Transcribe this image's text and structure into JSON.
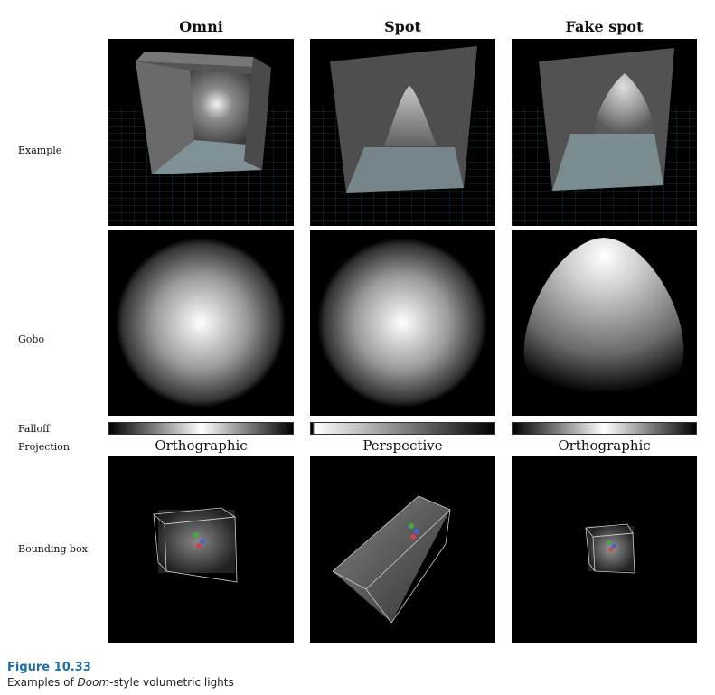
{
  "columns": [
    "Omni",
    "Spot",
    "Fake spot"
  ],
  "rows": {
    "example": "Example",
    "gobo": "Gobo",
    "falloff": "Falloff",
    "projection": "Projection",
    "bounding_box": "Bounding box"
  },
  "projections": [
    "Orthographic",
    "Perspective",
    "Orthographic"
  ],
  "figure": {
    "title": "Figure 10.33",
    "caption_prefix": "Examples of ",
    "caption_em": "Doom",
    "caption_suffix": "-style volumetric lights"
  },
  "colors": {
    "figure_title": "#1f6fa6",
    "grid": "#3fa7c9"
  }
}
